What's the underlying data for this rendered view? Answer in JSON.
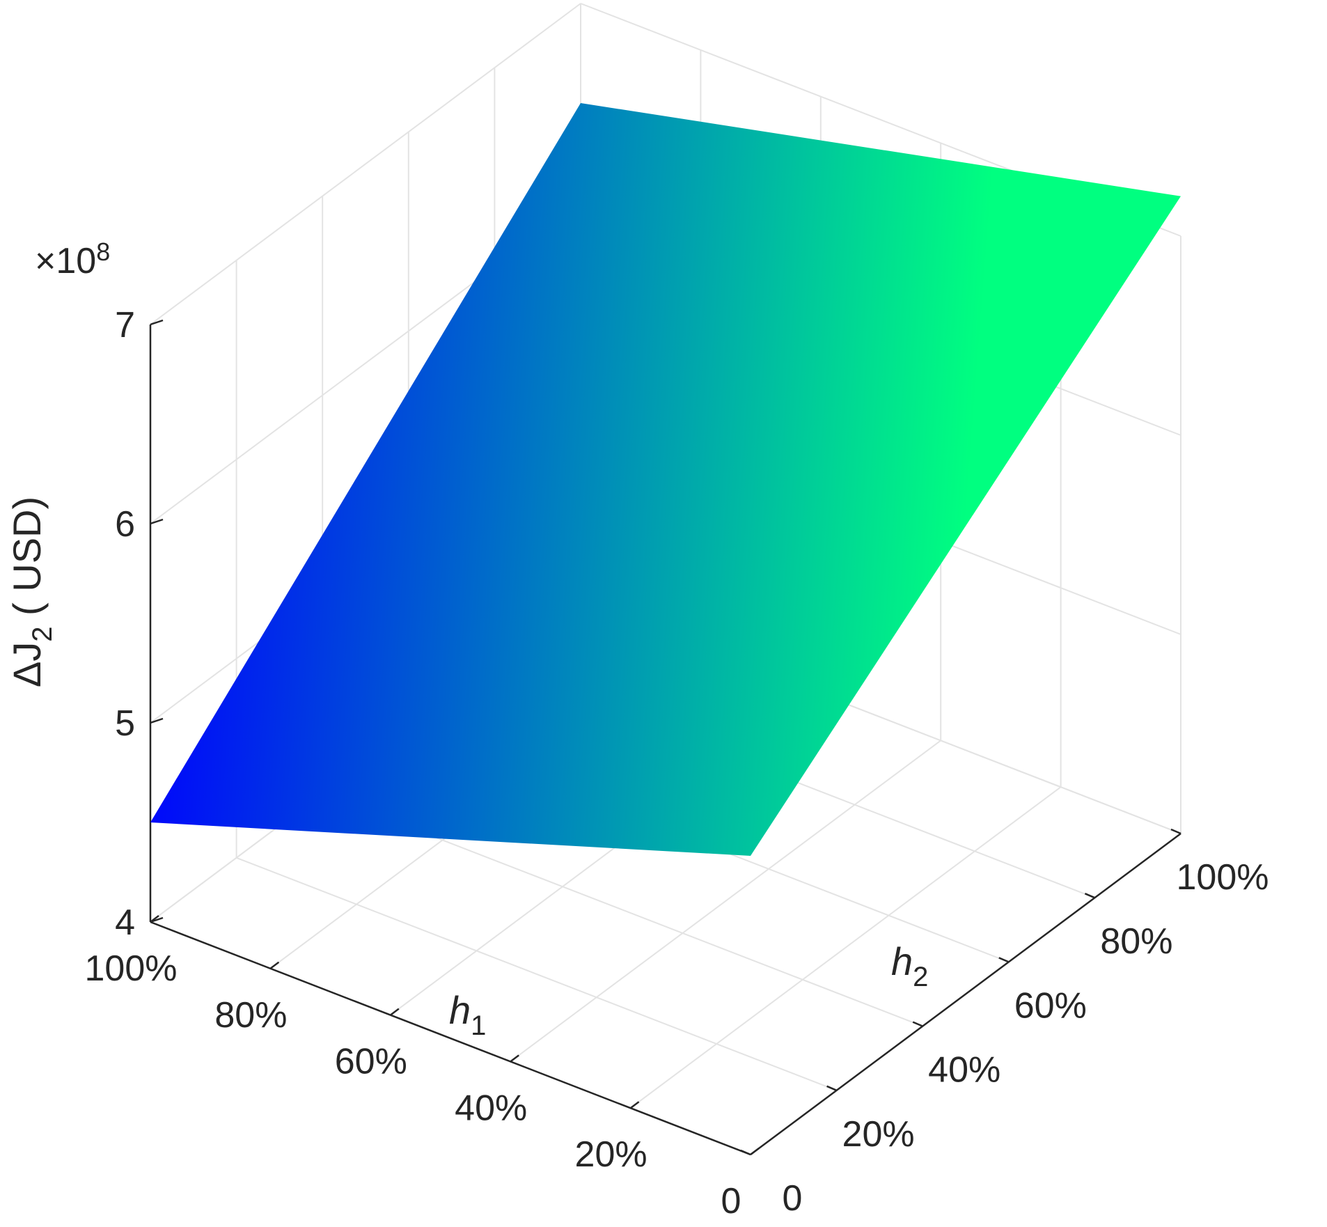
{
  "chart_data": {
    "type": "surface3d",
    "x_axis": {
      "label": "h",
      "label_sub": "1",
      "ticks": [
        "0",
        "20%",
        "40%",
        "60%",
        "80%",
        "100%"
      ],
      "range": [
        0,
        1
      ]
    },
    "y_axis": {
      "label": "h",
      "label_sub": "2",
      "ticks": [
        "0",
        "20%",
        "40%",
        "60%",
        "80%",
        "100%"
      ],
      "range": [
        0,
        1
      ]
    },
    "z_axis": {
      "label_prefix": "ΔJ",
      "label_sub": "2",
      "label_suffix": " ( USD)",
      "ticks": [
        "4",
        "5",
        "6",
        "7"
      ],
      "tick_values": [
        4,
        5,
        6,
        7
      ],
      "exponent_prefix": "×10",
      "exponent_power": "8",
      "range": [
        4,
        7
      ]
    },
    "grid": true,
    "colormap": [
      "#0000ff",
      "#00ff80"
    ],
    "surface": {
      "h1": [
        0,
        1
      ],
      "h2": [
        0,
        1
      ],
      "z": [
        [
          5.5,
          7.2
        ],
        [
          4.5,
          6.5
        ]
      ]
    }
  }
}
